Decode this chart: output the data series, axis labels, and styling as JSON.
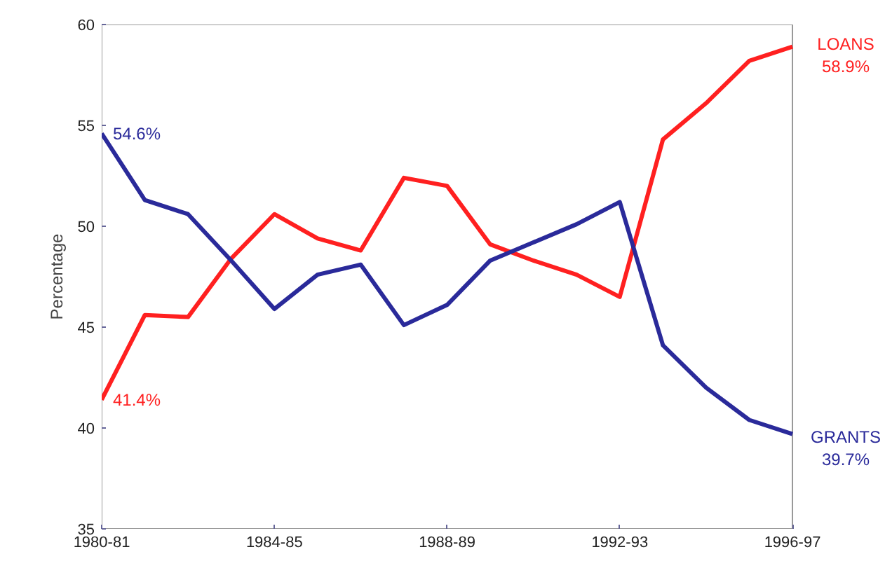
{
  "chart_data": {
    "type": "line",
    "ylabel": "Percentage",
    "categories": [
      "1980-81",
      null,
      null,
      null,
      "1984-85",
      null,
      null,
      null,
      "1988-89",
      null,
      null,
      null,
      "1992-93",
      null,
      null,
      null,
      "1996-97"
    ],
    "series": [
      {
        "name": "LOANS",
        "color": "#ff2020",
        "values": [
          41.4,
          45.6,
          45.5,
          48.4,
          50.6,
          49.4,
          48.8,
          52.4,
          52.0,
          49.1,
          48.3,
          47.6,
          46.5,
          54.3,
          56.1,
          58.2,
          58.9
        ],
        "value_labels": [
          "41.4%",
          null,
          null,
          null,
          null,
          null,
          null,
          null,
          null,
          null,
          null,
          null,
          null,
          null,
          null,
          null,
          "58.9%"
        ]
      },
      {
        "name": "GRANTS",
        "color": "#2a2a9a",
        "values": [
          54.6,
          51.3,
          50.6,
          48.3,
          45.9,
          47.6,
          48.1,
          45.1,
          46.1,
          48.3,
          49.2,
          50.1,
          51.2,
          44.1,
          42.0,
          40.4,
          39.7
        ],
        "value_labels": [
          "54.6%",
          null,
          null,
          null,
          null,
          null,
          null,
          null,
          null,
          null,
          null,
          null,
          null,
          null,
          null,
          null,
          "39.7%"
        ]
      }
    ],
    "ylim": [
      35,
      60
    ],
    "yticks": [
      35,
      40,
      45,
      50,
      55,
      60
    ],
    "grid": false,
    "legend": false,
    "marker": "none",
    "line_style": "solid"
  }
}
